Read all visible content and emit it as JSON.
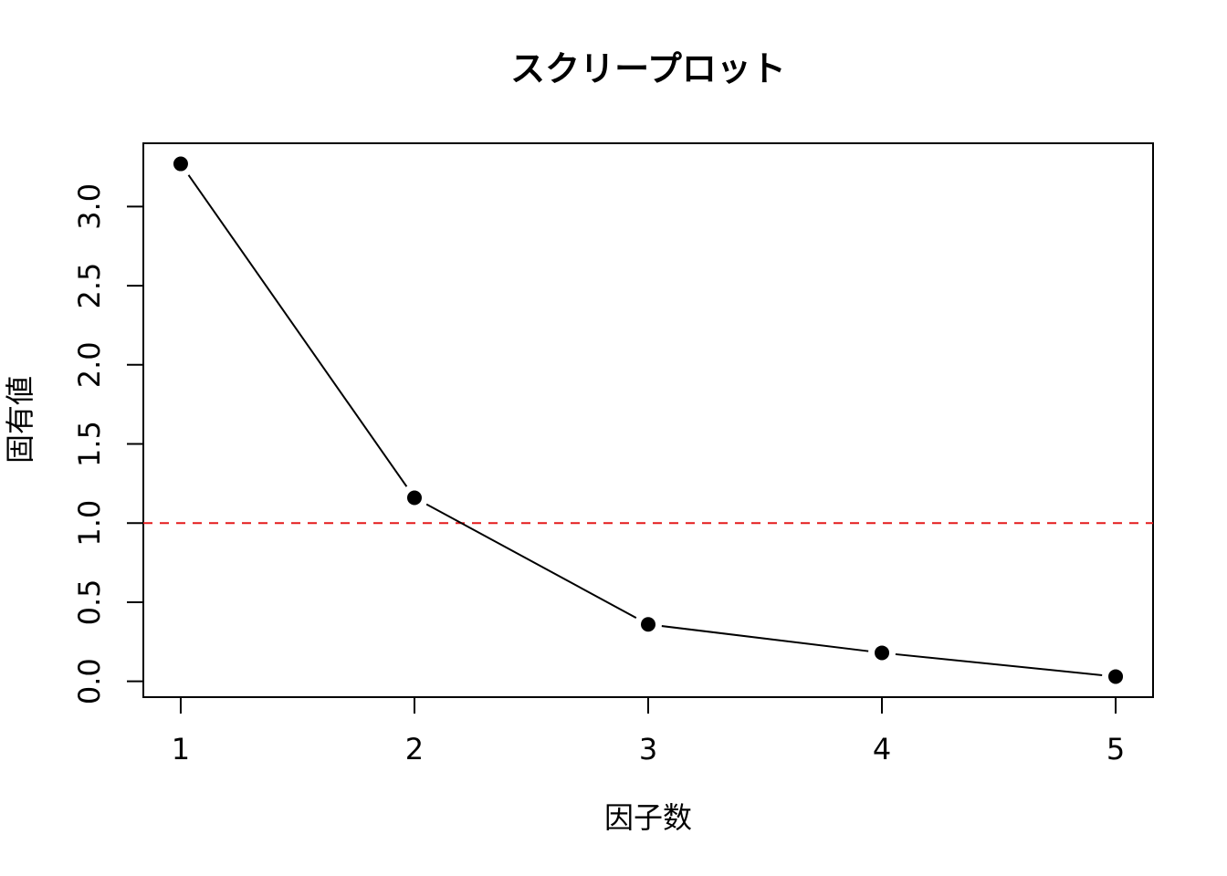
{
  "chart_data": {
    "type": "line",
    "title": "スクリープロット",
    "x_label": "因子数",
    "y_label": "固有値",
    "x": [
      1,
      2,
      3,
      4,
      5
    ],
    "series": [
      {
        "color": "#000000",
        "values": [
          3.27,
          1.16,
          0.36,
          0.18,
          0.03
        ]
      }
    ],
    "xlim": [
      0.84,
      5.16
    ],
    "xticks": [
      1,
      2,
      3,
      4,
      5
    ],
    "ylim": [
      -0.1,
      3.4
    ],
    "yticks": [
      {
        "value": 0,
        "label": "0.0"
      },
      0.5,
      {
        "value": 1,
        "label": "1.0"
      },
      1.5,
      {
        "value": 2,
        "label": "2.0"
      },
      2.5,
      {
        "value": 3,
        "label": "3.0"
      }
    ],
    "reference_line": {
      "value": 1,
      "color": "#e41a1c",
      "style": "dashed"
    }
  }
}
